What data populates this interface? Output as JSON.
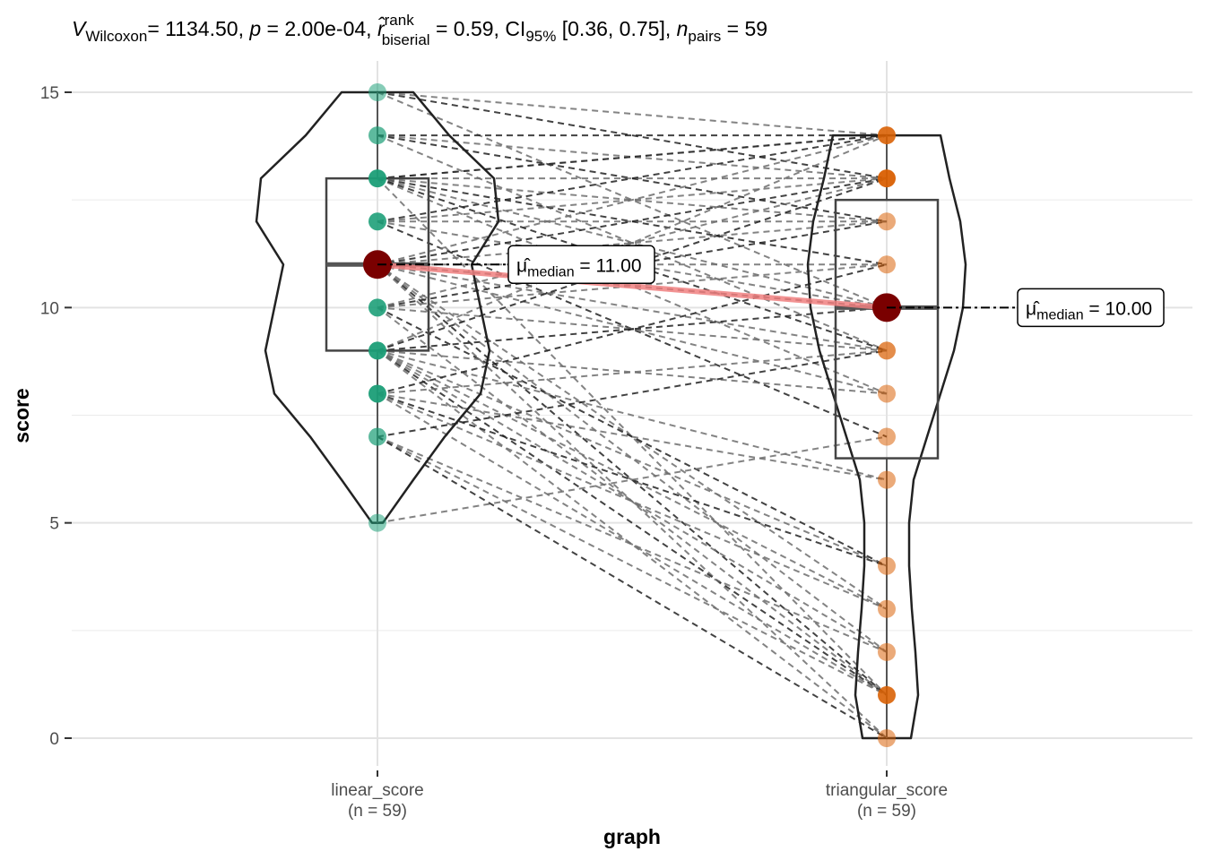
{
  "chart_data": {
    "type": "violin-box-paired",
    "xlabel": "graph",
    "ylabel": "score",
    "ylim": [
      0,
      15
    ],
    "y_ticks": [
      0,
      5,
      10,
      15
    ],
    "grid": true,
    "subtitle": {
      "stat_symbol": "V",
      "stat_sub": "Wilcoxon",
      "stat_value": "= 1134.50, ",
      "p_symbol": "p",
      "p_value": " = 2.00e-04, ",
      "r_symbol": "r̂",
      "r_sup": "rank",
      "r_sub": "biserial",
      "r_value": " = 0.59, CI",
      "ci_sub": "95%",
      "ci_value": " [0.36, 0.75], ",
      "n_symbol": "n",
      "n_sub": "pairs",
      "n_value": " = 59"
    },
    "groups": [
      {
        "name": "linear_score",
        "n_label": "(n = 59)",
        "color": "#1b9e77",
        "median": 11,
        "q1": 9,
        "q3": 13,
        "whisker_low": 5,
        "whisker_high": 15,
        "median_label_symbol": "μ̂",
        "median_label_sub": "median",
        "median_label_value": " = 11.00",
        "points": [
          15,
          14,
          14,
          13,
          13,
          13,
          13,
          13,
          12,
          12,
          12,
          11,
          11,
          11,
          11,
          11,
          11,
          11,
          11,
          11,
          11,
          10,
          10,
          10,
          9,
          9,
          9,
          9,
          9,
          9,
          8,
          8,
          8,
          8,
          7,
          7,
          5
        ]
      },
      {
        "name": "triangular_score",
        "n_label": "(n = 59)",
        "color": "#d95f02",
        "median": 10,
        "q1": 6.5,
        "q3": 12.5,
        "whisker_low": 0,
        "whisker_high": 14,
        "median_label_symbol": "μ̂",
        "median_label_sub": "median",
        "median_label_value": " = 10.00",
        "points": [
          14,
          14,
          14,
          13,
          13,
          13,
          13,
          12,
          11,
          10,
          10,
          10,
          9,
          9,
          8,
          7,
          6,
          4,
          3,
          2,
          1,
          1,
          1,
          0
        ]
      }
    ],
    "pairs": [
      [
        15,
        13
      ],
      [
        15,
        10
      ],
      [
        15,
        14
      ],
      [
        14,
        14
      ],
      [
        14,
        13
      ],
      [
        14,
        9
      ],
      [
        14,
        12
      ],
      [
        13,
        14
      ],
      [
        13,
        13
      ],
      [
        13,
        11
      ],
      [
        13,
        10
      ],
      [
        13,
        8
      ],
      [
        13,
        14
      ],
      [
        13,
        12
      ],
      [
        13,
        1
      ],
      [
        12,
        14
      ],
      [
        12,
        13
      ],
      [
        12,
        10
      ],
      [
        12,
        7
      ],
      [
        12,
        12
      ],
      [
        11,
        14
      ],
      [
        11,
        13
      ],
      [
        11,
        11
      ],
      [
        11,
        9
      ],
      [
        11,
        10
      ],
      [
        11,
        8
      ],
      [
        11,
        3
      ],
      [
        11,
        1
      ],
      [
        11,
        2
      ],
      [
        11,
        0
      ],
      [
        10,
        12
      ],
      [
        10,
        11
      ],
      [
        10,
        9
      ],
      [
        10,
        4
      ],
      [
        10,
        1
      ],
      [
        9,
        14
      ],
      [
        9,
        13
      ],
      [
        9,
        8
      ],
      [
        9,
        6
      ],
      [
        9,
        1
      ],
      [
        9,
        3
      ],
      [
        9,
        0
      ],
      [
        9,
        10
      ],
      [
        9,
        4
      ],
      [
        9,
        2
      ],
      [
        8,
        11
      ],
      [
        8,
        9
      ],
      [
        8,
        6
      ],
      [
        8,
        4
      ],
      [
        8,
        1
      ],
      [
        8,
        3
      ],
      [
        7,
        9
      ],
      [
        7,
        2
      ],
      [
        7,
        1
      ],
      [
        7,
        0
      ],
      [
        5,
        7
      ],
      [
        11,
        12
      ],
      [
        13,
        9
      ],
      [
        10,
        13
      ]
    ]
  }
}
